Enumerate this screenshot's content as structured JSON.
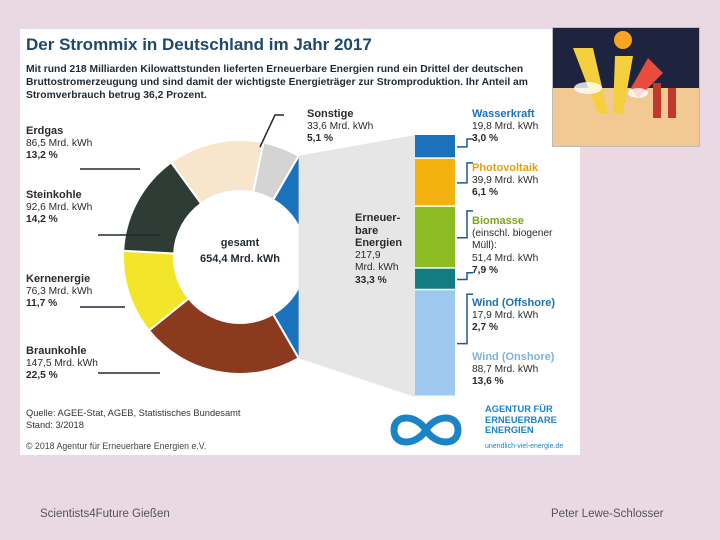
{
  "chart_data": {
    "type": "pie",
    "title": "Der Strommix in Deutschland im Jahr 2017",
    "subtitle": "Mit rund 218 Milliarden Kilowattstunden lieferten Erneuerbare Energien rund ein Drittel der deutschen Bruttostromerzeugung und sind damit der wichtigste Energieträger zur Stromproduktion. Ihr Anteil am Stromverbrauch betrug 36,2 Prozent.",
    "center_label": "gesamt",
    "center_value": "654,4 Mrd. kWh",
    "unit": "Mrd. kWh",
    "slices": [
      {
        "name": "Erneuer-bare Energien",
        "value": 217.9,
        "value_label": "217,9",
        "amount_label": "Mrd. kWh",
        "percent": "33,3 %",
        "color": "#1b72bc"
      },
      {
        "name": "Braunkohle",
        "value": 147.5,
        "value_label": "147,5 Mrd. kWh",
        "percent": "22,5 %",
        "color": "#8b3a1e"
      },
      {
        "name": "Kernenergie",
        "value": 76.3,
        "value_label": "76,3 Mrd. kWh",
        "percent": "11,7 %",
        "color": "#f2e52a"
      },
      {
        "name": "Steinkohle",
        "value": 92.6,
        "value_label": "92,6 Mrd. kWh",
        "percent": "14,2 %",
        "color": "#2f3c36"
      },
      {
        "name": "Erdgas",
        "value": 86.5,
        "value_label": "86,5 Mrd. kWh",
        "percent": "13,2 %",
        "color": "#f7e6cc"
      },
      {
        "name": "Sonstige",
        "value": 33.6,
        "value_label": "33,6 Mrd. kWh",
        "percent": "5,1 %",
        "color": "#d4d4d4"
      }
    ],
    "breakdown": [
      {
        "name": "Wasserkraft",
        "value": 19.8,
        "value_label": "19,8 Mrd. kWh",
        "percent": "3,0 %",
        "color": "#1b72bc"
      },
      {
        "name": "Photovoltaik",
        "value": 39.9,
        "value_label": "39,9 Mrd. kWh",
        "percent": "6,1 %",
        "color": "#f3b20f"
      },
      {
        "name": "Biomasse",
        "value": 51.4,
        "value_label": "51,4 Mrd. kWh",
        "percent": "7,9 %",
        "color": "#8cbd22",
        "sub": "(einschl. biogener Müll):"
      },
      {
        "name": "Wind (Offshore)",
        "value": 17.9,
        "value_label": "17,9 Mrd. kWh",
        "percent": "2,7 %",
        "color": "#127c83"
      },
      {
        "name": "Wind (Onshore)",
        "value": 88.7,
        "value_label": "88,7 Mrd. kWh",
        "percent": "13,6 %",
        "color": "#9fc8ee"
      }
    ]
  },
  "source": "Quelle: AGEE-Stat, AGEB, Statistisches Bundesamt",
  "stand": "Stand: 3/2018",
  "copyright": "© 2018 Agentur für Erneuerbare Energien e.V.",
  "logo": {
    "line1": "AGENTUR FÜR",
    "line2": "ERNEUERBARE",
    "line3": "ENERGIEN",
    "url": "unendlich-viel-energie.de",
    "color": "#1a84c6"
  },
  "footer": {
    "left": "Scientists4Future   Gießen",
    "right": "Peter Lewe-Schlosser"
  }
}
